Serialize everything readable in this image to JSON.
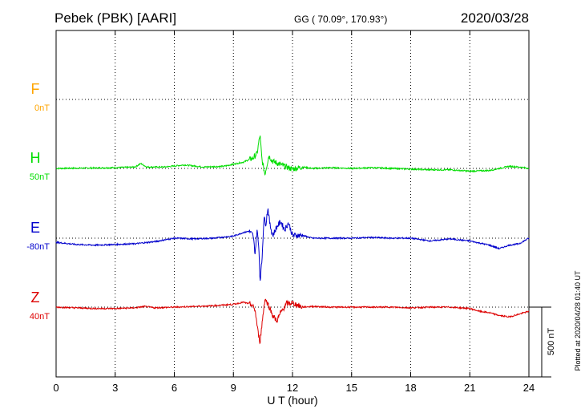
{
  "header": {
    "station": "Pebek (PBK)  [AARI]",
    "coords": "GG ( 70.09°, 170.93°)",
    "date": "2020/03/28"
  },
  "footer_note": "Plotted at 2020/04/28 01:40 UT",
  "chart_data": {
    "type": "line",
    "xlabel": "U T (hour)",
    "xlim": [
      0,
      24
    ],
    "xticks": [
      "0",
      "3",
      "6",
      "9",
      "12",
      "15",
      "18",
      "21",
      "24"
    ],
    "scale_bar": {
      "label": "500 nT",
      "value_nT": 500
    },
    "colors": {
      "F": "#ffa500",
      "H": "#00dd00",
      "E": "#0000cc",
      "Z": "#dd0000"
    },
    "series": [
      {
        "name": "F",
        "offset_label": "0nT",
        "points": []
      },
      {
        "name": "H",
        "offset_label": "50nT",
        "points": [
          [
            0,
            0
          ],
          [
            2,
            3
          ],
          [
            3,
            5
          ],
          [
            4,
            10
          ],
          [
            4.3,
            35
          ],
          [
            4.6,
            10
          ],
          [
            5.5,
            10
          ],
          [
            6.5,
            25
          ],
          [
            7.5,
            10
          ],
          [
            8.5,
            15
          ],
          [
            9,
            30
          ],
          [
            9.5,
            45
          ],
          [
            10,
            75
          ],
          [
            10.2,
            105
          ],
          [
            10.35,
            240
          ],
          [
            10.45,
            60
          ],
          [
            10.6,
            -40
          ],
          [
            10.8,
            90
          ],
          [
            11,
            50
          ],
          [
            11.2,
            40
          ],
          [
            11.5,
            20
          ],
          [
            12,
            -5
          ],
          [
            12.5,
            10
          ],
          [
            13,
            0
          ],
          [
            14,
            5
          ],
          [
            15,
            0
          ],
          [
            16,
            5
          ],
          [
            17,
            0
          ],
          [
            18,
            -5
          ],
          [
            19,
            -10
          ],
          [
            20,
            -10
          ],
          [
            21,
            -20
          ],
          [
            22,
            -15
          ],
          [
            23,
            15
          ],
          [
            23.5,
            10
          ],
          [
            24,
            0
          ]
        ]
      },
      {
        "name": "E",
        "offset_label": "-80nT",
        "points": [
          [
            0,
            -30
          ],
          [
            1,
            -45
          ],
          [
            2,
            -50
          ],
          [
            3,
            -45
          ],
          [
            4,
            -40
          ],
          [
            5,
            -25
          ],
          [
            6,
            0
          ],
          [
            7,
            -5
          ],
          [
            8,
            0
          ],
          [
            9,
            15
          ],
          [
            9.5,
            40
          ],
          [
            9.8,
            50
          ],
          [
            10,
            20
          ],
          [
            10.1,
            -110
          ],
          [
            10.2,
            60
          ],
          [
            10.3,
            -80
          ],
          [
            10.35,
            -310
          ],
          [
            10.45,
            -160
          ],
          [
            10.55,
            150
          ],
          [
            10.65,
            100
          ],
          [
            10.75,
            220
          ],
          [
            10.85,
            100
          ],
          [
            11,
            20
          ],
          [
            11.2,
            80
          ],
          [
            11.4,
            120
          ],
          [
            11.6,
            60
          ],
          [
            11.8,
            110
          ],
          [
            12,
            20
          ],
          [
            12.5,
            20
          ],
          [
            13,
            0
          ],
          [
            14,
            0
          ],
          [
            15,
            0
          ],
          [
            16,
            5
          ],
          [
            17,
            0
          ],
          [
            18,
            0
          ],
          [
            19,
            -20
          ],
          [
            20,
            -5
          ],
          [
            21,
            -20
          ],
          [
            22,
            -50
          ],
          [
            22.5,
            -75
          ],
          [
            23,
            -50
          ],
          [
            23.5,
            -40
          ],
          [
            24,
            0
          ]
        ]
      },
      {
        "name": "Z",
        "offset_label": "40nT",
        "points": [
          [
            0,
            0
          ],
          [
            2,
            -10
          ],
          [
            3,
            -10
          ],
          [
            4,
            -5
          ],
          [
            4.5,
            5
          ],
          [
            5,
            -5
          ],
          [
            6,
            0
          ],
          [
            7,
            5
          ],
          [
            8,
            10
          ],
          [
            9,
            20
          ],
          [
            9.5,
            35
          ],
          [
            9.9,
            20
          ],
          [
            10.1,
            -20
          ],
          [
            10.25,
            -180
          ],
          [
            10.35,
            -250
          ],
          [
            10.5,
            -60
          ],
          [
            10.6,
            60
          ],
          [
            10.8,
            10
          ],
          [
            11,
            -60
          ],
          [
            11.2,
            -100
          ],
          [
            11.4,
            -40
          ],
          [
            11.7,
            25
          ],
          [
            12,
            30
          ],
          [
            12.5,
            0
          ],
          [
            13,
            5
          ],
          [
            14,
            0
          ],
          [
            15,
            0
          ],
          [
            16,
            0
          ],
          [
            17,
            0
          ],
          [
            18,
            -5
          ],
          [
            19,
            0
          ],
          [
            20,
            0
          ],
          [
            21,
            -10
          ],
          [
            21.5,
            -30
          ],
          [
            22,
            -40
          ],
          [
            22.5,
            -60
          ],
          [
            23,
            -70
          ],
          [
            23.5,
            -50
          ],
          [
            24,
            -30
          ]
        ]
      }
    ]
  }
}
